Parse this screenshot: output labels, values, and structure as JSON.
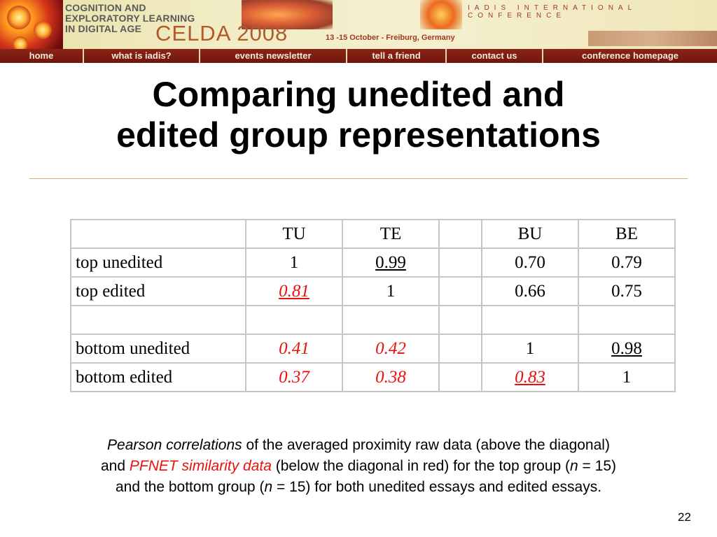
{
  "banner": {
    "conference_name": [
      "COGNITION AND",
      "EXPLORATORY LEARNING",
      "IN DIGITAL AGE"
    ],
    "celda": "CELDA 2008",
    "dates": "13 -15 October - Freiburg, Germany",
    "iadis": "IADIS INTERNATIONAL CONFERENCE",
    "nav": [
      "home",
      "what is iadis?",
      "events newsletter",
      "tell a friend",
      "contact us",
      "conference homepage"
    ]
  },
  "title": [
    "Comparing unedited and",
    "edited group representations"
  ],
  "table": {
    "headers": [
      "",
      "TU",
      "TE",
      "",
      "BU",
      "BE"
    ],
    "rows": [
      [
        "top unedited",
        "1",
        "0.99",
        "",
        "0.70",
        "0.79"
      ],
      [
        "top edited",
        "0.81",
        "1",
        "",
        "0.66",
        "0.75"
      ],
      [
        "",
        "",
        "",
        "",
        "",
        ""
      ],
      [
        "bottom unedited",
        "0.41",
        "0.42",
        "",
        "1",
        "0.98"
      ],
      [
        "bottom edited",
        "0.37",
        "0.38",
        "",
        "0.83",
        "1"
      ]
    ]
  },
  "caption": {
    "p1": "Pearson correlations",
    "p2": " of the averaged proximity raw data (above the diagonal) and ",
    "p3": "PFNET similarity data",
    "p4": " (below the diagonal in red) for the top group (",
    "n1": "n",
    "p5": " = 15) and the bottom group (",
    "n2": "n",
    "p6": " = 15) for both unedited essays and edited essays."
  },
  "page_number": "22"
}
